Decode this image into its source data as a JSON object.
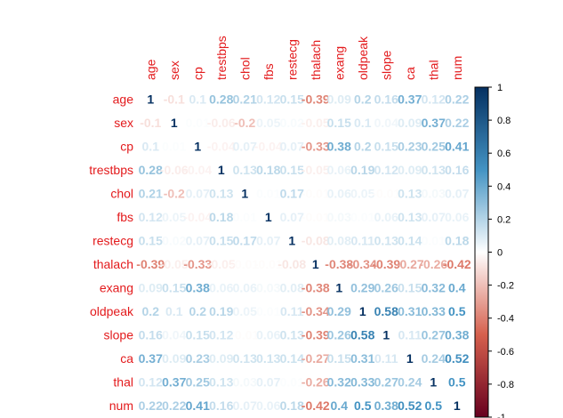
{
  "chart_data": {
    "type": "heatmap",
    "method": "number",
    "variables": [
      "age",
      "sex",
      "cp",
      "trestbps",
      "chol",
      "fbs",
      "restecg",
      "thalach",
      "exang",
      "oldpeak",
      "slope",
      "ca",
      "thal",
      "num"
    ],
    "values": [
      [
        1,
        -0.1,
        0.1,
        0.28,
        0.21,
        0.12,
        0.15,
        -0.39,
        0.09,
        0.2,
        0.16,
        0.37,
        0.12,
        0.22
      ],
      [
        -0.1,
        1,
        0.01,
        -0.06,
        -0.2,
        0.05,
        0.02,
        -0.05,
        0.15,
        0.1,
        0.04,
        0.09,
        0.37,
        0.22
      ],
      [
        0.1,
        0.01,
        1,
        -0.04,
        0.07,
        -0.04,
        0.07,
        -0.33,
        0.38,
        0.2,
        0.15,
        0.23,
        0.25,
        0.41
      ],
      [
        0.28,
        -0.06,
        -0.04,
        1,
        0.13,
        0.18,
        0.15,
        -0.05,
        0.06,
        0.19,
        0.12,
        0.09,
        0.13,
        0.16
      ],
      [
        0.21,
        -0.2,
        0.07,
        0.13,
        1,
        0.01,
        0.17,
        -0.01,
        0.06,
        0.05,
        -0.01,
        0.13,
        0.03,
        0.07
      ],
      [
        0.12,
        0.05,
        -0.04,
        0.18,
        0.01,
        1,
        0.07,
        -0.01,
        0.03,
        0.01,
        0.06,
        0.13,
        0.07,
        0.06
      ],
      [
        0.15,
        0.02,
        0.07,
        0.15,
        0.17,
        0.07,
        1,
        -0.08,
        0.08,
        0.11,
        0.13,
        0.14,
        0.01,
        0.18
      ],
      [
        -0.39,
        -0.05,
        -0.33,
        -0.05,
        -0.01,
        -0.01,
        -0.08,
        1,
        -0.38,
        -0.34,
        -0.39,
        -0.27,
        -0.26,
        -0.42
      ],
      [
        0.09,
        0.15,
        0.38,
        0.06,
        0.06,
        0.03,
        0.08,
        -0.38,
        1,
        0.29,
        0.26,
        0.15,
        0.32,
        0.4
      ],
      [
        0.2,
        0.1,
        0.2,
        0.19,
        0.05,
        0.01,
        0.11,
        -0.34,
        0.29,
        1,
        0.58,
        0.31,
        0.33,
        0.5
      ],
      [
        0.16,
        0.04,
        0.15,
        0.12,
        -0.01,
        0.06,
        0.13,
        -0.39,
        0.26,
        0.58,
        1,
        0.11,
        0.27,
        0.38
      ],
      [
        0.37,
        0.09,
        0.23,
        0.09,
        0.13,
        0.13,
        0.14,
        -0.27,
        0.15,
        0.31,
        0.11,
        1,
        0.24,
        0.52
      ],
      [
        0.12,
        0.37,
        0.25,
        0.13,
        0.03,
        0.07,
        0.01,
        -0.26,
        0.32,
        0.33,
        0.27,
        0.24,
        1,
        0.5
      ],
      [
        0.22,
        0.22,
        0.41,
        0.16,
        0.07,
        0.06,
        0.18,
        -0.42,
        0.4,
        0.5,
        0.38,
        0.52,
        0.5,
        1
      ]
    ],
    "legend": {
      "type": "colorbar",
      "placement": "right",
      "range": [
        -1,
        1
      ],
      "ticks": [
        1,
        0.8,
        0.6,
        0.4,
        0.2,
        0,
        -0.2,
        -0.4,
        -0.6,
        -0.8,
        -1
      ],
      "tick_labels": [
        "1",
        "0.8",
        "0.6",
        "0.4",
        "0.2",
        "0",
        "-0.2",
        "-0.4",
        "-0.6",
        "-0.8",
        "-1"
      ]
    },
    "colors": {
      "negative_end": "#67001f",
      "negative_mid": "#d6604d",
      "neutral": "#ffffff",
      "positive_mid": "#4393c3",
      "positive_end": "#053061",
      "label_color": "#e31a1c",
      "colorbar_border": "#000000",
      "tick_text": "#000000"
    },
    "grid": false
  }
}
